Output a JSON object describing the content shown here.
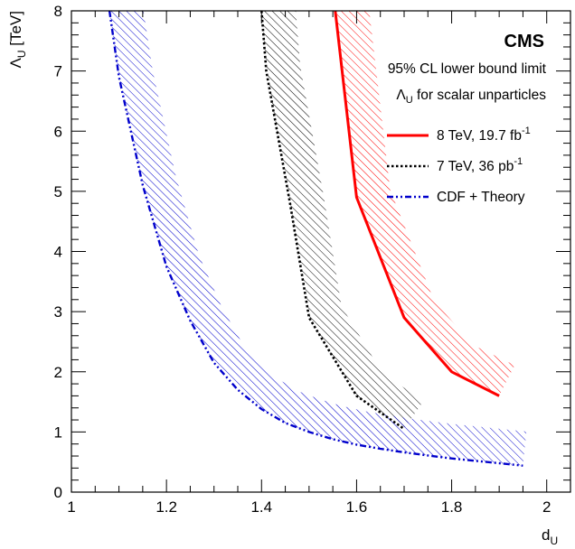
{
  "chart_data": {
    "type": "line",
    "experiment_label": "CMS",
    "annotation_line1": "95% CL lower bound limit",
    "annotation_line2": {
      "greek": "Λ",
      "sub": "U",
      "rest": " for scalar unparticles"
    },
    "ylabel": {
      "greek": "Λ",
      "sub": "U",
      "rest": " [TeV]"
    },
    "xlabel": {
      "main": "d",
      "sub": "U"
    },
    "xlim": [
      1.0,
      2.05
    ],
    "ylim": [
      0,
      8
    ],
    "x_ticks": [
      1,
      1.2,
      1.4,
      1.6,
      1.8,
      2
    ],
    "x_tick_labels": [
      "1",
      "1.2",
      "1.4",
      "1.6",
      "1.8",
      "2"
    ],
    "y_ticks": [
      0,
      1,
      2,
      3,
      4,
      5,
      6,
      7,
      8
    ],
    "y_tick_labels": [
      "0",
      "1",
      "2",
      "3",
      "4",
      "5",
      "6",
      "7",
      "8"
    ],
    "grid": false,
    "legend_position": "top-right",
    "series": [
      {
        "name": "8 TeV, 19.7 fb",
        "name_sup": "-1",
        "color": "#ff0000",
        "style": "solid",
        "hatch_side": "below",
        "x": [
          1.555,
          1.6,
          1.7,
          1.8,
          1.9
        ],
        "y": [
          8.0,
          4.9,
          2.9,
          2.0,
          1.6
        ]
      },
      {
        "name": "7 TeV, 36 pb",
        "name_sup": "-1",
        "color": "#000000",
        "style": "dotted",
        "hatch_side": "below",
        "x": [
          1.4,
          1.41,
          1.46,
          1.5,
          1.6,
          1.7
        ],
        "y": [
          8.0,
          7.0,
          4.8,
          2.9,
          1.6,
          1.05
        ]
      },
      {
        "name": "CDF + Theory",
        "name_sup": "",
        "color": "#0000cc",
        "style": "dashdot",
        "hatch_side": "below",
        "x": [
          1.08,
          1.1,
          1.15,
          1.2,
          1.25,
          1.3,
          1.35,
          1.4,
          1.45,
          1.5,
          1.55,
          1.6,
          1.65,
          1.7,
          1.75,
          1.8,
          1.85,
          1.9,
          1.95
        ],
        "y": [
          8.0,
          6.9,
          5.1,
          3.75,
          2.85,
          2.15,
          1.7,
          1.38,
          1.15,
          1.0,
          0.88,
          0.79,
          0.72,
          0.66,
          0.61,
          0.56,
          0.52,
          0.48,
          0.44
        ]
      }
    ]
  }
}
